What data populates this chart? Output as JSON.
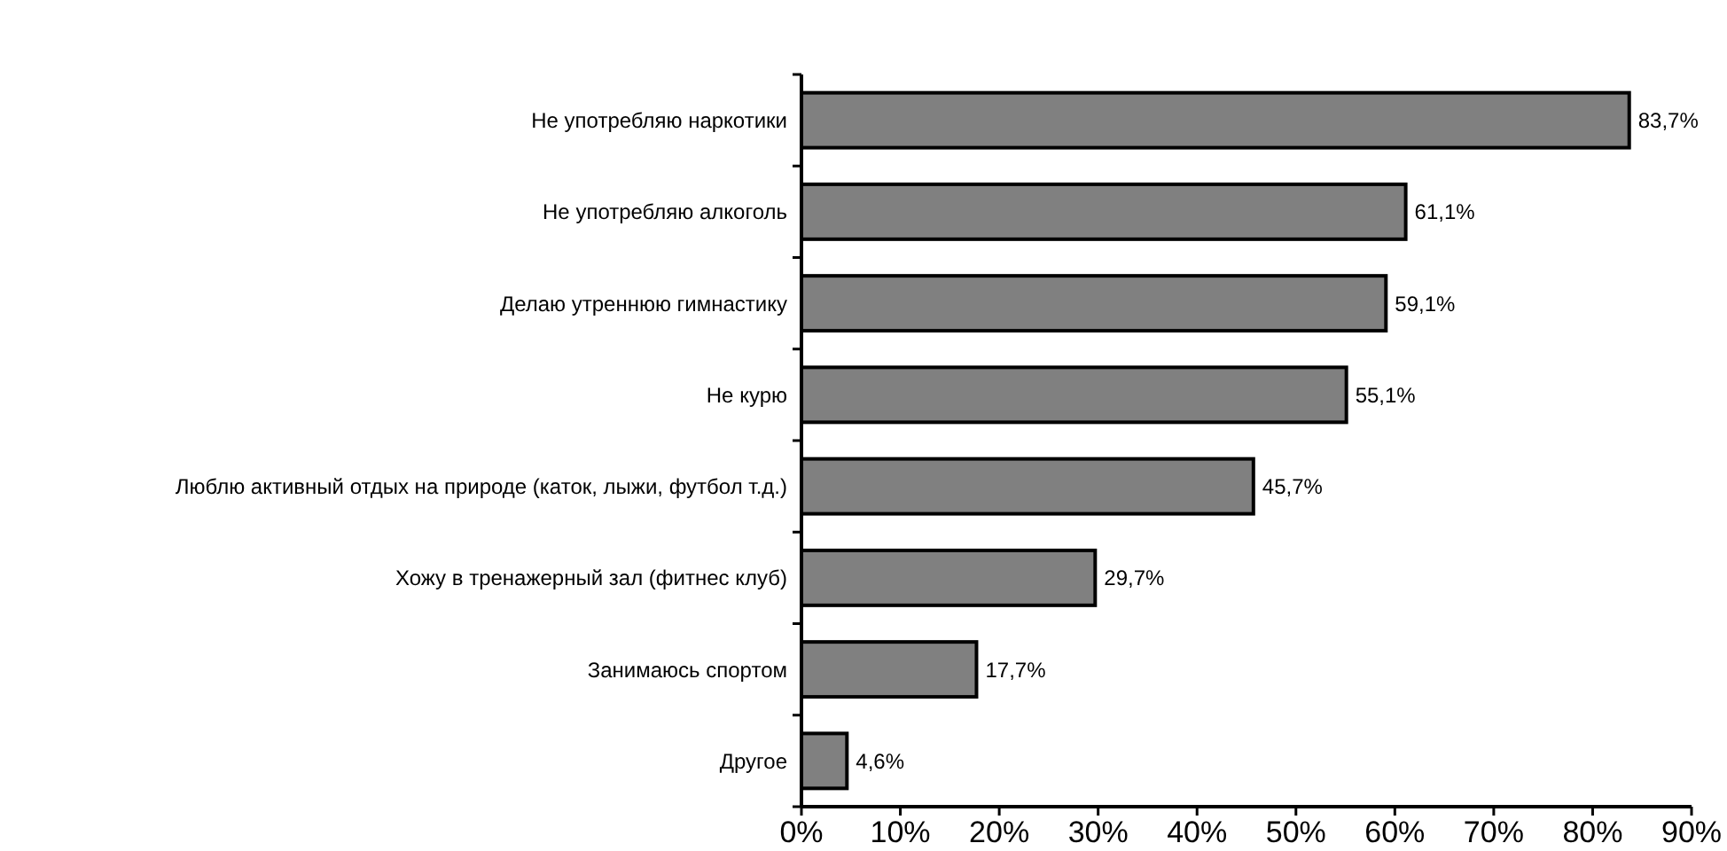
{
  "chart_data": {
    "type": "bar",
    "orientation": "horizontal",
    "categories": [
      "Не употребляю наркотики",
      "Не употребляю алкоголь",
      "Делаю утреннюю гимнастику",
      "Не курю",
      "Люблю активный отдых на природе (каток, лыжи, футбол т.д.)",
      "Хожу в тренажерный зал (фитнес клуб)",
      "Занимаюсь спортом",
      "Другое"
    ],
    "values": [
      83.7,
      61.1,
      59.1,
      55.1,
      45.7,
      29.7,
      17.7,
      4.6
    ],
    "value_labels": [
      "83,7%",
      "61,1%",
      "59,1%",
      "55,1%",
      "45,7%",
      "29,7%",
      "17,7%",
      "4,6%"
    ],
    "color": "#808080",
    "xlim": [
      0,
      90
    ],
    "xticks": [
      {
        "value": 0,
        "label": "0%"
      },
      {
        "value": 10,
        "label": "10%"
      },
      {
        "value": 20,
        "label": "20%"
      },
      {
        "value": 30,
        "label": "30%"
      },
      {
        "value": 40,
        "label": "40%"
      },
      {
        "value": 50,
        "label": "50%"
      },
      {
        "value": 60,
        "label": "60%"
      },
      {
        "value": 70,
        "label": "70%"
      },
      {
        "value": 80,
        "label": "80%"
      },
      {
        "value": 90,
        "label": "90%"
      }
    ],
    "grid": false
  }
}
